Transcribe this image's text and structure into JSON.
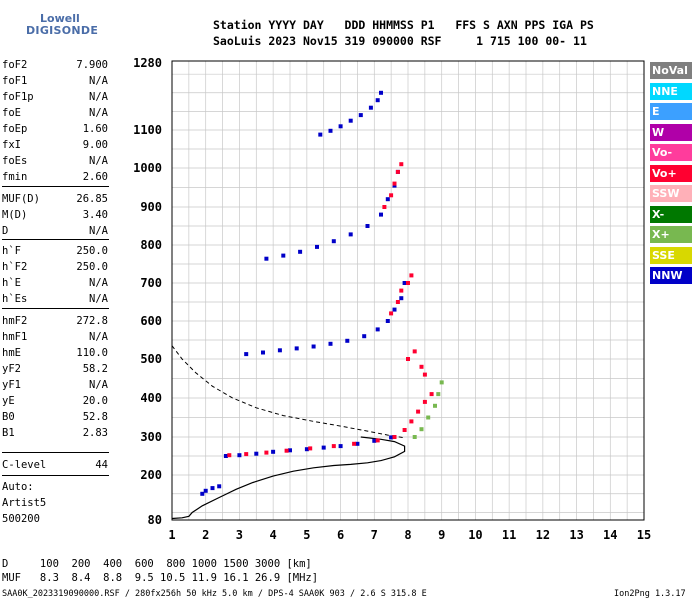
{
  "logo": {
    "line1": "Lowell",
    "line2": "DIGISONDE"
  },
  "header": {
    "line1": "Station YYYY DAY   DDD HHMMSS P1   FFS S AXN PPS IGA PS",
    "line2": "SaoLuis 2023 Nov15 319 090000 RSF     1 715 100 00- 11"
  },
  "params": [
    {
      "k": "foF2",
      "v": "7.900"
    },
    {
      "k": "foF1",
      "v": "N/A"
    },
    {
      "k": "foF1p",
      "v": "N/A"
    },
    {
      "k": "foE",
      "v": "N/A"
    },
    {
      "k": "foEp",
      "v": "1.60"
    },
    {
      "k": "fxI",
      "v": "9.00"
    },
    {
      "k": "foEs",
      "v": "N/A"
    },
    {
      "k": "fmin",
      "v": "2.60"
    },
    {
      "k": "MUF(D)",
      "v": "26.85"
    },
    {
      "k": "M(D)",
      "v": "3.40"
    },
    {
      "k": "D",
      "v": "N/A"
    },
    {
      "k": "h`F",
      "v": "250.0"
    },
    {
      "k": "h`F2",
      "v": "250.0"
    },
    {
      "k": "h`E",
      "v": "N/A"
    },
    {
      "k": "h`Es",
      "v": "N/A"
    },
    {
      "k": "hmF2",
      "v": "272.8"
    },
    {
      "k": "hmF1",
      "v": "N/A"
    },
    {
      "k": "hmE",
      "v": "110.0"
    },
    {
      "k": "yF2",
      "v": "58.2"
    },
    {
      "k": "yF1",
      "v": "N/A"
    },
    {
      "k": "yE",
      "v": "20.0"
    },
    {
      "k": "B0",
      "v": "52.8"
    },
    {
      "k": "B1",
      "v": "2.83"
    },
    {
      "k": "C-level",
      "v": "44"
    }
  ],
  "auto": {
    "l1": "Auto:",
    "l2": "Artist5",
    "l3": "500200"
  },
  "legend": [
    {
      "label": "NoVal",
      "color": "#7f7f7f"
    },
    {
      "label": "NNE",
      "color": "#00d8ff"
    },
    {
      "label": "E",
      "color": "#3ca0ff"
    },
    {
      "label": "W",
      "color": "#b000a8"
    },
    {
      "label": "Vo-",
      "color": "#ff3c9c"
    },
    {
      "label": "Vo+",
      "color": "#ff0030"
    },
    {
      "label": "SSW",
      "color": "#ffb0b8"
    },
    {
      "label": "X-",
      "color": "#007800"
    },
    {
      "label": "X+",
      "color": "#78b850"
    },
    {
      "label": "SSE",
      "color": "#d8d800"
    },
    {
      "label": "NNW",
      "color": "#0000c8"
    }
  ],
  "footer": {
    "d_line": "D     100  200  400  600  800 1000 1500 3000 [km]",
    "muf_line": "MUF   8.3  8.4  8.8  9.5 10.5 11.9 16.1 26.9 [MHz]",
    "file_line": "SAA0K_2023319090000.RSF / 280fx256h 50 kHz 5.0 km / DPS-4 SAA0K 903 / 2.6 S 315.8 E",
    "version": "Ion2Png 1.3.17"
  },
  "chart_data": {
    "type": "scatter",
    "xlim": [
      1,
      15
    ],
    "ylim": [
      80,
      1280
    ],
    "x_ticks": [
      1,
      2,
      3,
      4,
      5,
      6,
      7,
      8,
      9,
      10,
      11,
      12,
      13,
      14,
      15
    ],
    "y_ticks": [
      80,
      200,
      300,
      400,
      500,
      600,
      700,
      800,
      900,
      1000,
      1100,
      1280
    ],
    "grid": true,
    "profile_curve": [
      [
        1.0,
        84
      ],
      [
        1.3,
        86
      ],
      [
        1.5,
        90
      ],
      [
        1.6,
        100
      ],
      [
        1.9,
        118
      ],
      [
        2.4,
        140
      ],
      [
        2.9,
        162
      ],
      [
        3.4,
        180
      ],
      [
        4.0,
        197
      ],
      [
        4.6,
        210
      ],
      [
        5.2,
        219
      ],
      [
        5.8,
        225
      ],
      [
        6.3,
        228
      ],
      [
        6.8,
        232
      ],
      [
        7.2,
        238
      ],
      [
        7.6,
        248
      ],
      [
        7.9,
        262
      ],
      [
        7.9,
        276
      ],
      [
        7.6,
        288
      ],
      [
        7.2,
        294
      ],
      [
        6.6,
        300
      ]
    ],
    "reflection_curve": [
      [
        1.0,
        535
      ],
      [
        1.3,
        500
      ],
      [
        1.7,
        465
      ],
      [
        2.2,
        430
      ],
      [
        2.8,
        400
      ],
      [
        3.5,
        375
      ],
      [
        4.3,
        355
      ],
      [
        5.2,
        340
      ],
      [
        6.0,
        328
      ],
      [
        6.8,
        315
      ],
      [
        7.4,
        305
      ],
      [
        7.9,
        298
      ]
    ],
    "traces": [
      {
        "color": "#0000c8",
        "points": [
          [
            2.6,
            250
          ],
          [
            3.0,
            252
          ],
          [
            3.5,
            256
          ],
          [
            4.0,
            261
          ],
          [
            4.5,
            265
          ],
          [
            5.0,
            268
          ],
          [
            5.5,
            272
          ],
          [
            6.0,
            276
          ],
          [
            6.5,
            282
          ],
          [
            7.0,
            290
          ],
          [
            7.5,
            299
          ]
        ]
      },
      {
        "color": "#ff0030",
        "points": [
          [
            2.7,
            252
          ],
          [
            3.2,
            255
          ],
          [
            3.8,
            259
          ],
          [
            4.4,
            264
          ],
          [
            5.1,
            270
          ],
          [
            5.8,
            276
          ],
          [
            6.4,
            282
          ],
          [
            7.1,
            291
          ],
          [
            7.6,
            300
          ],
          [
            7.9,
            318
          ],
          [
            8.1,
            340
          ],
          [
            8.3,
            365
          ],
          [
            8.5,
            390
          ],
          [
            8.7,
            410
          ]
        ]
      },
      {
        "color": "#78b850",
        "points": [
          [
            8.2,
            300
          ],
          [
            8.4,
            320
          ],
          [
            8.6,
            350
          ],
          [
            8.8,
            380
          ],
          [
            8.9,
            410
          ],
          [
            9.0,
            440
          ]
        ]
      },
      {
        "color": "#0000c8",
        "points": [
          [
            3.2,
            513
          ],
          [
            3.7,
            517
          ],
          [
            4.2,
            523
          ],
          [
            4.7,
            528
          ],
          [
            5.2,
            533
          ],
          [
            5.7,
            540
          ],
          [
            6.2,
            548
          ],
          [
            6.7,
            560
          ],
          [
            7.1,
            578
          ],
          [
            7.4,
            600
          ],
          [
            7.6,
            630
          ],
          [
            7.8,
            660
          ],
          [
            7.9,
            700
          ]
        ]
      },
      {
        "color": "#ff0030",
        "points": [
          [
            7.5,
            620
          ],
          [
            7.7,
            650
          ],
          [
            7.8,
            680
          ],
          [
            8.0,
            700
          ],
          [
            8.1,
            720
          ]
        ]
      },
      {
        "color": "#0000c8",
        "points": [
          [
            3.8,
            764
          ],
          [
            4.3,
            772
          ],
          [
            4.8,
            782
          ],
          [
            5.3,
            795
          ],
          [
            5.8,
            810
          ],
          [
            6.3,
            828
          ],
          [
            6.8,
            850
          ],
          [
            7.2,
            880
          ],
          [
            7.4,
            920
          ],
          [
            7.6,
            955
          ],
          [
            7.7,
            990
          ]
        ]
      },
      {
        "color": "#ff0030",
        "points": [
          [
            7.3,
            900
          ],
          [
            7.5,
            930
          ],
          [
            7.6,
            960
          ],
          [
            7.7,
            990
          ],
          [
            7.8,
            1010
          ]
        ]
      },
      {
        "color": "#0000c8",
        "points": [
          [
            5.4,
            1088
          ],
          [
            5.7,
            1098
          ],
          [
            6.0,
            1110
          ],
          [
            6.3,
            1125
          ],
          [
            6.6,
            1140
          ],
          [
            6.9,
            1160
          ],
          [
            7.1,
            1180
          ],
          [
            7.2,
            1200
          ]
        ]
      },
      {
        "color": "#0000c8",
        "points": [
          [
            1.9,
            150
          ],
          [
            2.0,
            158
          ],
          [
            2.2,
            165
          ],
          [
            2.4,
            170
          ]
        ]
      },
      {
        "color": "#ff0030",
        "points": [
          [
            8.0,
            500
          ],
          [
            8.2,
            520
          ],
          [
            8.4,
            480
          ],
          [
            8.5,
            460
          ]
        ]
      }
    ]
  }
}
